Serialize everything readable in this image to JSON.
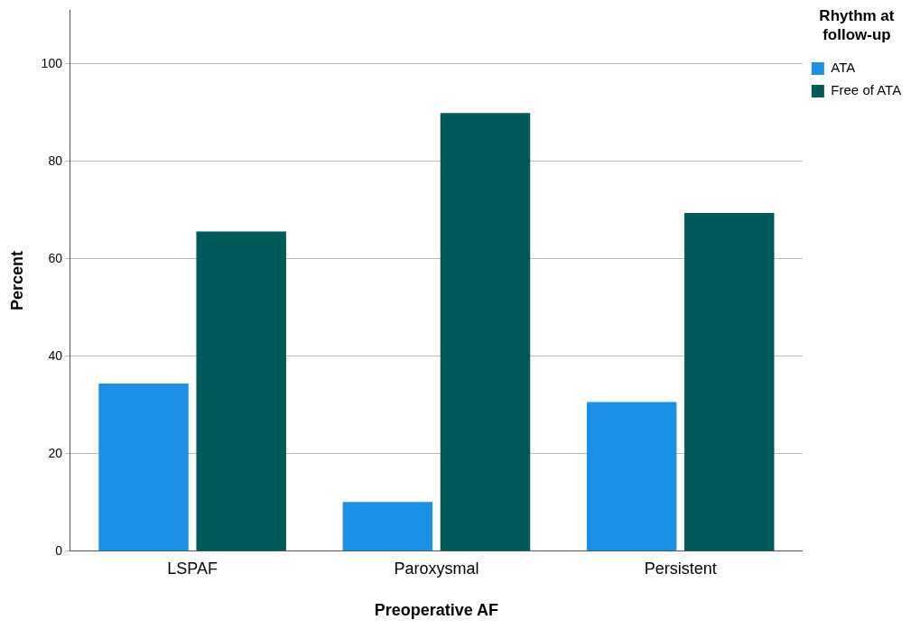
{
  "chart_data": {
    "type": "bar",
    "xlabel": "Preoperative AF",
    "ylabel": "Percent",
    "legend_title": "Rhythm at follow-up",
    "categories": [
      "LSPAF",
      "Paroxysmal",
      "Persistent"
    ],
    "series": [
      {
        "name": "ATA",
        "color": "#1a90e6",
        "values": [
          34.4,
          10.1,
          30.6
        ]
      },
      {
        "name": "Free of ATA",
        "color": "#005a5a",
        "values": [
          65.6,
          89.9,
          69.4
        ]
      }
    ],
    "ylim": [
      0,
      111
    ],
    "yticks": [
      0,
      20,
      40,
      60,
      80,
      100
    ],
    "grid": "y",
    "legend": "top right"
  }
}
